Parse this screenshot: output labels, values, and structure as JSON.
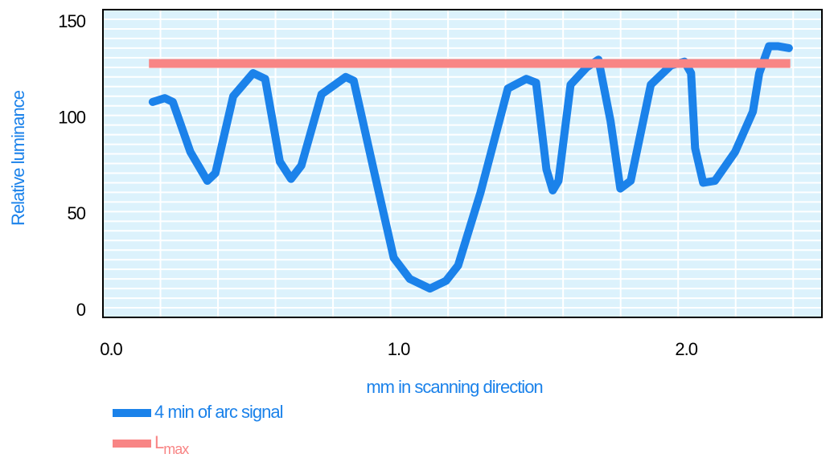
{
  "chart_data": {
    "type": "line",
    "xlabel": "mm in scanning direction",
    "ylabel": "Relative luminance",
    "xlim": [
      0,
      2.5
    ],
    "xticks": [
      {
        "value": 0,
        "label": "0.0"
      },
      {
        "value": 1,
        "label": "1.0"
      },
      {
        "value": 2,
        "label": "2.0"
      }
    ],
    "ylim": [
      0,
      160
    ],
    "yticks": [
      0,
      50,
      100,
      150
    ],
    "xgrid_step": 0.2,
    "ygrid_step": 5,
    "grid": true,
    "series": [
      {
        "name": "4 min of arc signal",
        "color": "#1b82ea",
        "x": [
          0.173,
          0.215,
          0.243,
          0.304,
          0.363,
          0.391,
          0.453,
          0.522,
          0.564,
          0.615,
          0.654,
          0.69,
          0.76,
          0.844,
          0.872,
          0.941,
          1.011,
          1.067,
          1.137,
          1.193,
          1.235,
          1.313,
          1.408,
          1.472,
          1.506,
          1.542,
          1.564,
          1.584,
          1.626,
          1.682,
          1.723,
          1.765,
          1.799,
          1.835,
          1.905,
          1.975,
          2.022,
          2.045,
          2.059,
          2.087,
          2.128,
          2.198,
          2.26,
          2.282,
          2.316,
          2.346,
          2.385
        ],
        "values": [
          112,
          114,
          112,
          86,
          71,
          75,
          115,
          127,
          124,
          81,
          72,
          79,
          116,
          125,
          123,
          77,
          31,
          20,
          15,
          19,
          27,
          65,
          119,
          124,
          122,
          77,
          66,
          71,
          121,
          130,
          134,
          102,
          67,
          71,
          121,
          131,
          133,
          127,
          88,
          70,
          71,
          86,
          107,
          127,
          141,
          141,
          140
        ]
      },
      {
        "name": "Lmax",
        "color": "#f88585",
        "x": [
          0.16,
          2.39
        ],
        "values": [
          132,
          132
        ]
      }
    ]
  }
}
